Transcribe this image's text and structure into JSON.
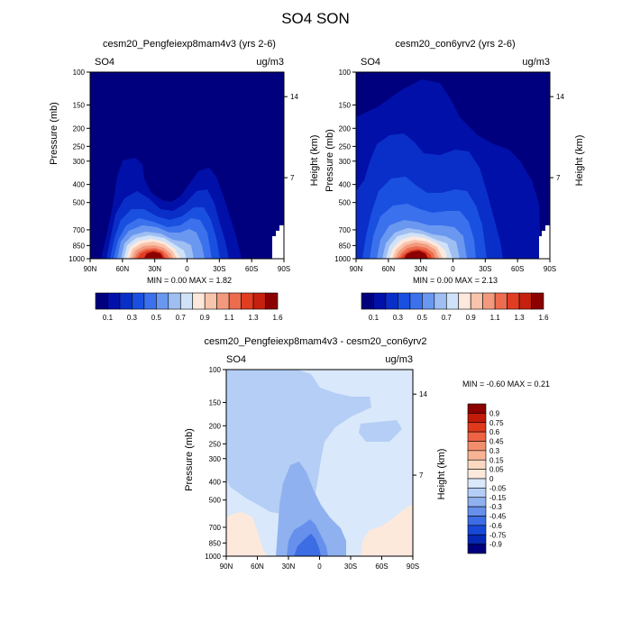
{
  "figure": {
    "title": "SO4 SON"
  },
  "panels": [
    {
      "id": "left",
      "title": "cesm20_Pengfeiexp8mam4v3 (yrs 2-6)",
      "left_label": "SO4",
      "right_label": "ug/m3",
      "min_max": "MIN =   0.00   MAX =   1.82"
    },
    {
      "id": "right",
      "title": "cesm20_con6yrv2 (yrs 2-6)",
      "left_label": "SO4",
      "right_label": "ug/m3",
      "min_max": "MIN =   0.00   MAX =   2.13"
    },
    {
      "id": "diff",
      "title": "cesm20_Pengfeiexp8mam4v3 - cesm20_con6yrv2",
      "left_label": "SO4",
      "right_label": "ug/m3",
      "min_max": "MIN =  -0.60   MAX =   0.21"
    }
  ],
  "axes": {
    "ylabel": "Pressure (mb)",
    "y2label": "Height (km)",
    "pressure_ticks": [
      "100",
      "150",
      "200",
      "250",
      "300",
      "400",
      "500",
      "700",
      "850",
      "1000"
    ],
    "height_ticks": [
      "14",
      "7"
    ],
    "lat_ticks": [
      "90N",
      "60N",
      "30N",
      "0",
      "30S",
      "60S",
      "90S"
    ]
  },
  "colorbar_abs": {
    "labels": [
      "0.1",
      "0.3",
      "0.5",
      "0.7",
      "0.9",
      "1.1",
      "1.3",
      "1.6"
    ],
    "colors": [
      "#00007f",
      "#0010a8",
      "#0a2fc8",
      "#1a50e0",
      "#3b71ec",
      "#6a98f0",
      "#9fbef2",
      "#d0e2f8",
      "#fde8dc",
      "#f8c4ab",
      "#f39a7e",
      "#ec6c4f",
      "#e03d23",
      "#c5210e",
      "#8c0000"
    ]
  },
  "colorbar_diff": {
    "labels": [
      "0.9",
      "0.75",
      "0.6",
      "0.45",
      "0.3",
      "0.15",
      "0.05",
      "0",
      "-0.05",
      "-0.15",
      "-0.3",
      "-0.45",
      "-0.6",
      "-0.75",
      "-0.9"
    ],
    "colors": [
      "#8c0000",
      "#c21b07",
      "#e0391c",
      "#ee6344",
      "#f38e6d",
      "#f7b494",
      "#fbd8c2",
      "#fde9dc",
      "#d9e8fb",
      "#b5cef5",
      "#8fb1ef",
      "#6690ec",
      "#3d6de5",
      "#1848d8",
      "#0528b5",
      "#00007f"
    ]
  },
  "chart_data": [
    {
      "type": "heatmap",
      "title": "cesm20_Pengfeiexp8mam4v3 (yrs 2-6)",
      "variable": "SO4",
      "units": "ug/m3",
      "x_ticks": [
        "90N",
        "60N",
        "30N",
        "0",
        "30S",
        "60S",
        "90S"
      ],
      "y_ticks": [
        100,
        150,
        200,
        250,
        300,
        400,
        500,
        700,
        850,
        1000
      ],
      "y_scale": "log",
      "ylim": [
        1000,
        100
      ],
      "min": 0.0,
      "max": 1.82,
      "levels": [
        0.1,
        0.2,
        0.3,
        0.4,
        0.5,
        0.6,
        0.7,
        0.8,
        0.9,
        1.0,
        1.1,
        1.2,
        1.3,
        1.6
      ]
    },
    {
      "type": "heatmap",
      "title": "cesm20_con6yrv2 (yrs 2-6)",
      "variable": "SO4",
      "units": "ug/m3",
      "x_ticks": [
        "90N",
        "60N",
        "30N",
        "0",
        "30S",
        "60S",
        "90S"
      ],
      "y_ticks": [
        100,
        150,
        200,
        250,
        300,
        400,
        500,
        700,
        850,
        1000
      ],
      "y_scale": "log",
      "ylim": [
        1000,
        100
      ],
      "min": 0.0,
      "max": 2.13,
      "levels": [
        0.1,
        0.2,
        0.3,
        0.4,
        0.5,
        0.6,
        0.7,
        0.8,
        0.9,
        1.0,
        1.1,
        1.2,
        1.3,
        1.6
      ]
    },
    {
      "type": "heatmap",
      "title": "cesm20_Pengfeiexp8mam4v3 - cesm20_con6yrv2",
      "variable": "SO4",
      "units": "ug/m3",
      "x_ticks": [
        "90N",
        "60N",
        "30N",
        "0",
        "30S",
        "60S",
        "90S"
      ],
      "y_ticks": [
        100,
        150,
        200,
        250,
        300,
        400,
        500,
        700,
        850,
        1000
      ],
      "y_scale": "log",
      "ylim": [
        1000,
        100
      ],
      "min": -0.6,
      "max": 0.21,
      "levels": [
        -0.9,
        -0.75,
        -0.6,
        -0.45,
        -0.3,
        -0.15,
        -0.05,
        0,
        0.05,
        0.15,
        0.3,
        0.45,
        0.6,
        0.75,
        0.9
      ]
    }
  ]
}
